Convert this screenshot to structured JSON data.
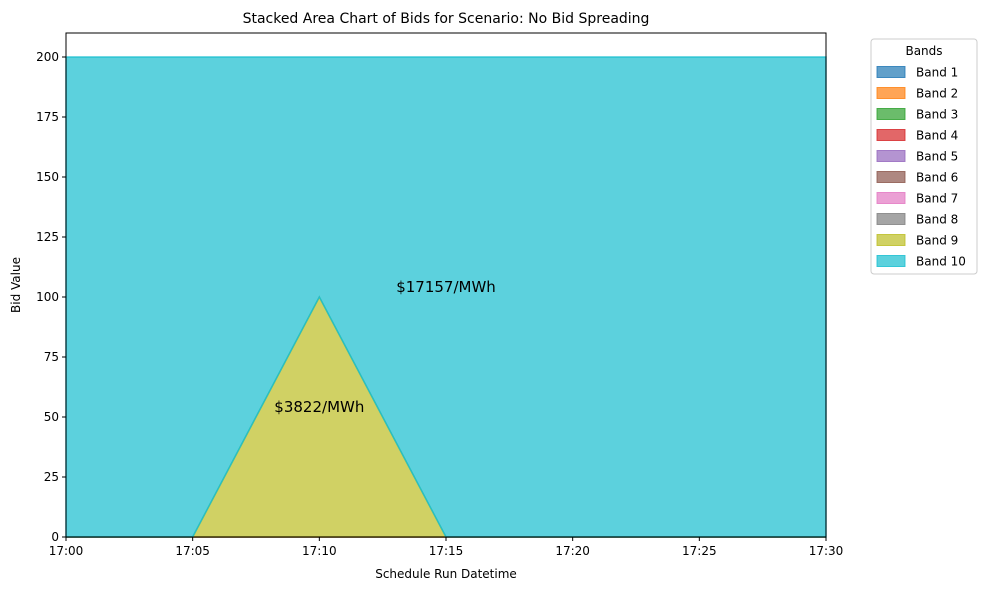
{
  "chart_data": {
    "type": "area",
    "stacked": true,
    "title": "Stacked Area Chart of Bids for Scenario: No Bid Spreading",
    "xlabel": "Schedule Run Datetime",
    "ylabel": "Bid Value",
    "x": [
      "17:00",
      "17:05",
      "17:10",
      "17:15",
      "17:20",
      "17:25",
      "17:30"
    ],
    "xlim": [
      "17:00",
      "17:30"
    ],
    "ylim": [
      0,
      210
    ],
    "yticks": [
      0,
      25,
      50,
      75,
      100,
      125,
      150,
      175,
      200
    ],
    "grid": false,
    "legend": {
      "title": "Bands",
      "placement": "outside-right"
    },
    "series": [
      {
        "name": "Band 1",
        "color": "#1f77b4",
        "values": [
          0,
          0,
          0,
          0,
          0,
          0,
          0
        ]
      },
      {
        "name": "Band 2",
        "color": "#ff7f0e",
        "values": [
          0,
          0,
          0,
          0,
          0,
          0,
          0
        ]
      },
      {
        "name": "Band 3",
        "color": "#2ca02c",
        "values": [
          0,
          0,
          0,
          0,
          0,
          0,
          0
        ]
      },
      {
        "name": "Band 4",
        "color": "#d62728",
        "values": [
          0,
          0,
          0,
          0,
          0,
          0,
          0
        ]
      },
      {
        "name": "Band 5",
        "color": "#9467bd",
        "values": [
          0,
          0,
          0,
          0,
          0,
          0,
          0
        ]
      },
      {
        "name": "Band 6",
        "color": "#8c564b",
        "values": [
          0,
          0,
          0,
          0,
          0,
          0,
          0
        ]
      },
      {
        "name": "Band 7",
        "color": "#e377c2",
        "values": [
          0,
          0,
          0,
          0,
          0,
          0,
          0
        ]
      },
      {
        "name": "Band 8",
        "color": "#7f7f7f",
        "values": [
          0,
          0,
          0,
          0,
          0,
          0,
          0
        ]
      },
      {
        "name": "Band 9",
        "color": "#bcbd22",
        "values": [
          0,
          0,
          100,
          0,
          0,
          0,
          0
        ]
      },
      {
        "name": "Band 10",
        "color": "#17becf",
        "values": [
          200,
          200,
          100,
          200,
          200,
          200,
          200
        ]
      }
    ],
    "annotations": [
      {
        "text": "$17157/MWh",
        "x": "17:15",
        "y": 102
      },
      {
        "text": "$3822/MWh",
        "x": "17:10",
        "y": 52
      }
    ]
  }
}
